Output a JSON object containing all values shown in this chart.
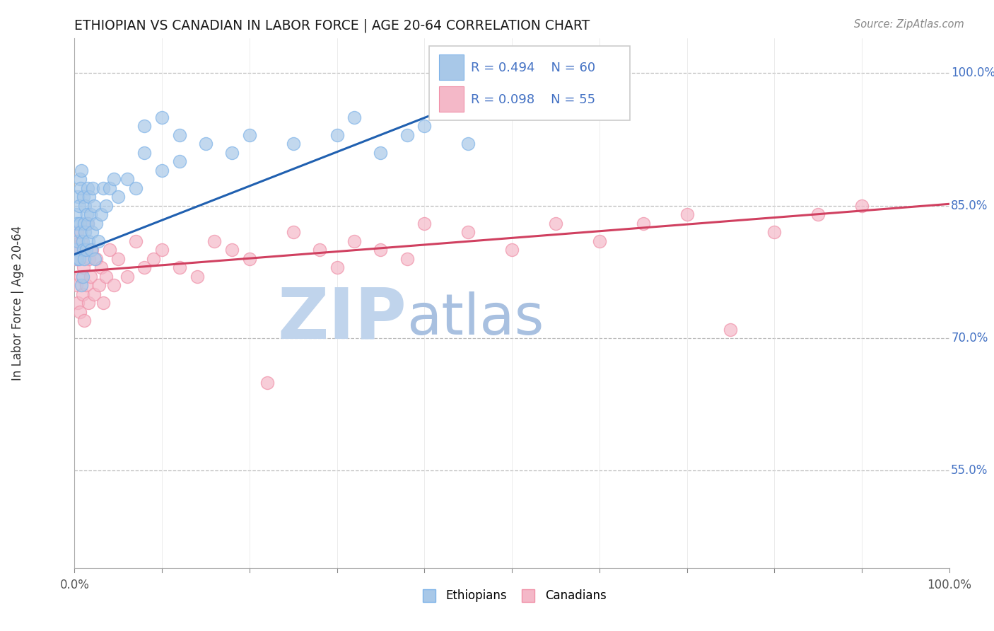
{
  "title": "ETHIOPIAN VS CANADIAN IN LABOR FORCE | AGE 20-64 CORRELATION CHART",
  "source": "Source: ZipAtlas.com",
  "ylabel": "In Labor Force | Age 20-64",
  "xlim": [
    0.0,
    1.0
  ],
  "ylim": [
    0.44,
    1.04
  ],
  "ytick_vals": [
    0.55,
    0.7,
    0.85,
    1.0
  ],
  "ytick_labels": [
    "55.0%",
    "70.0%",
    "85.0%",
    "100.0%"
  ],
  "xtick_vals": [
    0.0,
    0.1,
    0.2,
    0.3,
    0.4,
    0.5,
    0.6,
    0.7,
    0.8,
    0.9,
    1.0
  ],
  "xtick_labels": [
    "0.0%",
    "",
    "",
    "",
    "",
    "",
    "",
    "",
    "",
    "",
    "100.0%"
  ],
  "legend_R": [
    0.494,
    0.098
  ],
  "legend_N": [
    60,
    55
  ],
  "blue_color": "#A8C8E8",
  "blue_edge_color": "#7EB3E8",
  "pink_color": "#F4B8C8",
  "pink_edge_color": "#F090A8",
  "blue_line_color": "#2060B0",
  "pink_line_color": "#D04060",
  "ytick_color": "#4472C4",
  "xtick_color": "#555555",
  "grid_color": "#BBBBBB",
  "watermark_zip_color": "#C0D4EC",
  "watermark_atlas_color": "#A8C0E0",
  "eth_x": [
    0.001,
    0.002,
    0.003,
    0.003,
    0.004,
    0.004,
    0.005,
    0.005,
    0.006,
    0.006,
    0.007,
    0.007,
    0.008,
    0.008,
    0.009,
    0.009,
    0.01,
    0.01,
    0.011,
    0.011,
    0.012,
    0.012,
    0.013,
    0.014,
    0.015,
    0.015,
    0.016,
    0.017,
    0.018,
    0.019,
    0.02,
    0.021,
    0.022,
    0.023,
    0.025,
    0.027,
    0.03,
    0.033,
    0.036,
    0.04,
    0.045,
    0.05,
    0.06,
    0.07,
    0.08,
    0.1,
    0.12,
    0.15,
    0.18,
    0.2,
    0.08,
    0.1,
    0.12,
    0.25,
    0.3,
    0.32,
    0.35,
    0.38,
    0.4,
    0.45
  ],
  "eth_y": [
    0.84,
    0.8,
    0.83,
    0.79,
    0.81,
    0.86,
    0.79,
    0.85,
    0.83,
    0.88,
    0.87,
    0.82,
    0.76,
    0.89,
    0.81,
    0.77,
    0.8,
    0.86,
    0.83,
    0.79,
    0.85,
    0.82,
    0.8,
    0.84,
    0.87,
    0.83,
    0.81,
    0.86,
    0.84,
    0.8,
    0.82,
    0.87,
    0.85,
    0.79,
    0.83,
    0.81,
    0.84,
    0.87,
    0.85,
    0.87,
    0.88,
    0.86,
    0.88,
    0.87,
    0.91,
    0.89,
    0.9,
    0.92,
    0.91,
    0.93,
    0.94,
    0.95,
    0.93,
    0.92,
    0.93,
    0.95,
    0.91,
    0.93,
    0.94,
    0.92
  ],
  "can_x": [
    0.001,
    0.002,
    0.003,
    0.004,
    0.005,
    0.006,
    0.007,
    0.008,
    0.009,
    0.01,
    0.011,
    0.012,
    0.013,
    0.015,
    0.016,
    0.017,
    0.018,
    0.02,
    0.022,
    0.025,
    0.028,
    0.03,
    0.033,
    0.036,
    0.04,
    0.045,
    0.05,
    0.06,
    0.07,
    0.08,
    0.09,
    0.1,
    0.12,
    0.14,
    0.16,
    0.18,
    0.2,
    0.22,
    0.25,
    0.28,
    0.3,
    0.32,
    0.35,
    0.38,
    0.4,
    0.45,
    0.5,
    0.55,
    0.6,
    0.65,
    0.7,
    0.75,
    0.8,
    0.85,
    0.9
  ],
  "can_y": [
    0.79,
    0.76,
    0.82,
    0.74,
    0.8,
    0.73,
    0.77,
    0.81,
    0.75,
    0.78,
    0.72,
    0.8,
    0.76,
    0.83,
    0.74,
    0.79,
    0.77,
    0.8,
    0.75,
    0.79,
    0.76,
    0.78,
    0.74,
    0.77,
    0.8,
    0.76,
    0.79,
    0.77,
    0.81,
    0.78,
    0.79,
    0.8,
    0.78,
    0.77,
    0.81,
    0.8,
    0.79,
    0.65,
    0.82,
    0.8,
    0.78,
    0.81,
    0.8,
    0.79,
    0.83,
    0.82,
    0.8,
    0.83,
    0.81,
    0.83,
    0.84,
    0.71,
    0.82,
    0.84,
    0.85
  ],
  "blue_line_x": [
    0.0,
    0.44
  ],
  "blue_line_y": [
    0.795,
    0.965
  ],
  "pink_line_x": [
    0.0,
    1.0
  ],
  "pink_line_y": [
    0.775,
    0.852
  ]
}
